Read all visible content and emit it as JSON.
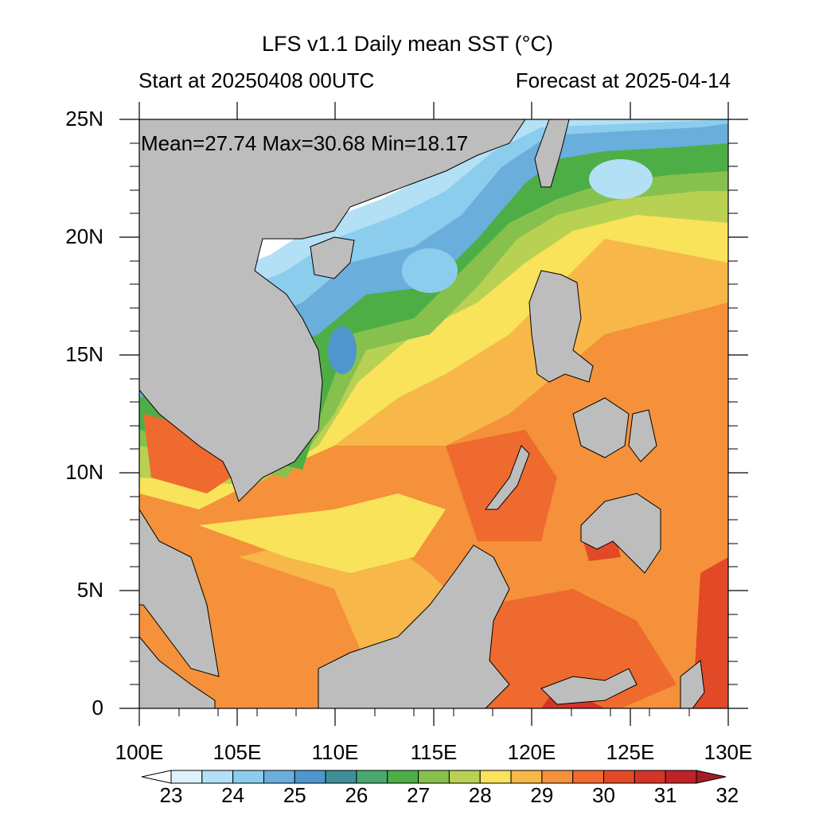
{
  "title": "LFS v1.1 Daily mean SST (°C)",
  "start_label": "Start at 20250408 00UTC",
  "forecast_label": "Forecast at 2025-04-14",
  "stats": "Mean=27.74  Max=30.68  Min=18.17",
  "map": {
    "lon_range": [
      100,
      130
    ],
    "lat_range": [
      0,
      25
    ],
    "x_ticks": [
      "100E",
      "105E",
      "110E",
      "115E",
      "120E",
      "125E",
      "130E"
    ],
    "y_ticks": [
      "0",
      "5N",
      "10N",
      "15N",
      "20N",
      "25N"
    ],
    "land_color": "#bdbdbd"
  },
  "colorbar": {
    "labels": [
      "23",
      "24",
      "25",
      "26",
      "27",
      "28",
      "29",
      "30",
      "31",
      "32"
    ],
    "colors": [
      "#ffffff",
      "#ddf2fb",
      "#b3e0f5",
      "#8ccdee",
      "#6aaedc",
      "#4f96cd",
      "#3f8f99",
      "#4aa86f",
      "#4dae46",
      "#86c14e",
      "#b9d152",
      "#f8e35a",
      "#f8b749",
      "#f4913a",
      "#ef6a2e",
      "#e24927",
      "#d43428",
      "#bf2227",
      "#a51c22"
    ]
  }
}
